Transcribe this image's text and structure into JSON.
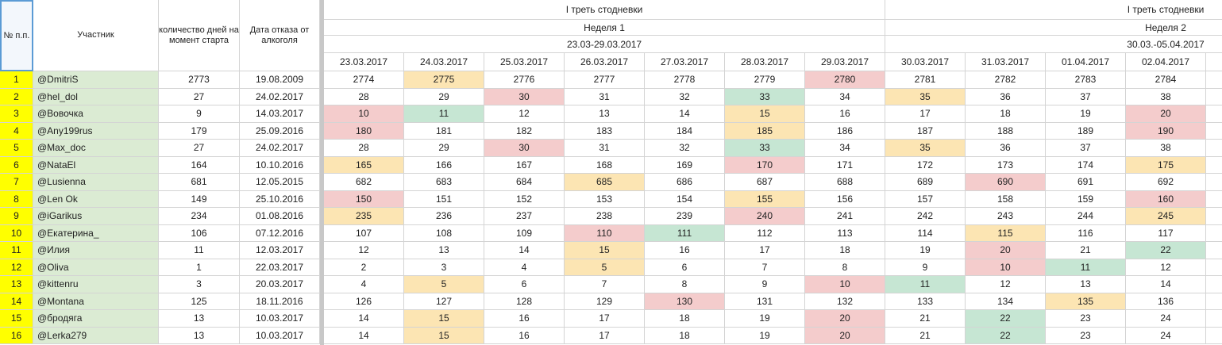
{
  "table": {
    "headers": {
      "num": "№ п.п.",
      "name": "Участник",
      "days": "количество дней на момент старта",
      "quit_date": "Дата отказа от алкоголя"
    },
    "groups": [
      {
        "title": "I треть стодневки",
        "week": "Неделя 1",
        "range": "23.03-29.03.2017"
      },
      {
        "title": "I треть стодневки",
        "week": "Неделя 2",
        "range": "30.03.-05.04.2017"
      }
    ],
    "dates": [
      "23.03.2017",
      "24.03.2017",
      "25.03.2017",
      "26.03.2017",
      "27.03.2017",
      "28.03.2017",
      "29.03.2017",
      "30.03.2017",
      "31.03.2017",
      "01.04.2017",
      "02.04.2017"
    ],
    "rows": [
      {
        "n": 1,
        "name": "@DmitriS",
        "days": 2773,
        "quit_date": "19.08.2009",
        "cells": [
          2774,
          2775,
          2776,
          2777,
          2778,
          2779,
          2780,
          2781,
          2782,
          2783,
          2784
        ],
        "colors": [
          null,
          "#fce5b3",
          null,
          null,
          null,
          null,
          "#f4cccc",
          null,
          null,
          null,
          null
        ]
      },
      {
        "n": 2,
        "name": "@hel_dol",
        "days": 27,
        "quit_date": "24.02.2017",
        "cells": [
          28,
          29,
          30,
          31,
          32,
          33,
          34,
          35,
          36,
          37,
          38
        ],
        "colors": [
          null,
          null,
          "#f4cccc",
          null,
          null,
          "#c6e6d3",
          null,
          "#fce5b3",
          null,
          null,
          null
        ]
      },
      {
        "n": 3,
        "name": "@Вовочка",
        "days": 9,
        "quit_date": "14.03.2017",
        "cells": [
          10,
          11,
          12,
          13,
          14,
          15,
          16,
          17,
          18,
          19,
          20
        ],
        "colors": [
          "#f4cccc",
          "#c6e6d3",
          null,
          null,
          null,
          "#fce5b3",
          null,
          null,
          null,
          null,
          "#f4cccc"
        ]
      },
      {
        "n": 4,
        "name": "@Any199rus",
        "days": 179,
        "quit_date": "25.09.2016",
        "cells": [
          180,
          181,
          182,
          183,
          184,
          185,
          186,
          187,
          188,
          189,
          190
        ],
        "colors": [
          "#f4cccc",
          null,
          null,
          null,
          null,
          "#fce5b3",
          null,
          null,
          null,
          null,
          "#f4cccc"
        ]
      },
      {
        "n": 5,
        "name": "@Max_doc",
        "days": 27,
        "quit_date": "24.02.2017",
        "cells": [
          28,
          29,
          30,
          31,
          32,
          33,
          34,
          35,
          36,
          37,
          38
        ],
        "colors": [
          null,
          null,
          "#f4cccc",
          null,
          null,
          "#c6e6d3",
          null,
          "#fce5b3",
          null,
          null,
          null
        ]
      },
      {
        "n": 6,
        "name": "@NataEl",
        "days": 164,
        "quit_date": "10.10.2016",
        "cells": [
          165,
          166,
          167,
          168,
          169,
          170,
          171,
          172,
          173,
          174,
          175
        ],
        "colors": [
          "#fce5b3",
          null,
          null,
          null,
          null,
          "#f4cccc",
          null,
          null,
          null,
          null,
          "#fce5b3"
        ]
      },
      {
        "n": 7,
        "name": "@Lusienna",
        "days": 681,
        "quit_date": "12.05.2015",
        "cells": [
          682,
          683,
          684,
          685,
          686,
          687,
          688,
          689,
          690,
          691,
          692
        ],
        "colors": [
          null,
          null,
          null,
          "#fce5b3",
          null,
          null,
          null,
          null,
          "#f4cccc",
          null,
          null
        ]
      },
      {
        "n": 8,
        "name": "@Len Ok",
        "days": 149,
        "quit_date": "25.10.2016",
        "cells": [
          150,
          151,
          152,
          153,
          154,
          155,
          156,
          157,
          158,
          159,
          160
        ],
        "colors": [
          "#f4cccc",
          null,
          null,
          null,
          null,
          "#fce5b3",
          null,
          null,
          null,
          null,
          "#f4cccc"
        ]
      },
      {
        "n": 9,
        "name": "@iGarikus",
        "days": 234,
        "quit_date": "01.08.2016",
        "cells": [
          235,
          236,
          237,
          238,
          239,
          240,
          241,
          242,
          243,
          244,
          245
        ],
        "colors": [
          "#fce5b3",
          null,
          null,
          null,
          null,
          "#f4cccc",
          null,
          null,
          null,
          null,
          "#fce5b3"
        ]
      },
      {
        "n": 10,
        "name": "@Екатерина_",
        "days": 106,
        "quit_date": "07.12.2016",
        "cells": [
          107,
          108,
          109,
          110,
          111,
          112,
          113,
          114,
          115,
          116,
          117
        ],
        "colors": [
          null,
          null,
          null,
          "#f4cccc",
          "#c6e6d3",
          null,
          null,
          null,
          "#fce5b3",
          null,
          null
        ]
      },
      {
        "n": 11,
        "name": "@Илия",
        "days": 11,
        "quit_date": "12.03.2017",
        "cells": [
          12,
          13,
          14,
          15,
          16,
          17,
          18,
          19,
          20,
          21,
          22
        ],
        "colors": [
          null,
          null,
          null,
          "#fce5b3",
          null,
          null,
          null,
          null,
          "#f4cccc",
          null,
          "#c6e6d3"
        ]
      },
      {
        "n": 12,
        "name": "@Oliva",
        "days": 1,
        "quit_date": "22.03.2017",
        "cells": [
          2,
          3,
          4,
          5,
          6,
          7,
          8,
          9,
          10,
          11,
          12
        ],
        "colors": [
          null,
          null,
          null,
          "#fce5b3",
          null,
          null,
          null,
          null,
          "#f4cccc",
          "#c6e6d3",
          null
        ]
      },
      {
        "n": 13,
        "name": "@kittenru",
        "days": 3,
        "quit_date": "20.03.2017",
        "cells": [
          4,
          5,
          6,
          7,
          8,
          9,
          10,
          11,
          12,
          13,
          14
        ],
        "colors": [
          null,
          "#fce5b3",
          null,
          null,
          null,
          null,
          "#f4cccc",
          "#c6e6d3",
          null,
          null,
          null
        ]
      },
      {
        "n": 14,
        "name": "@Montana",
        "days": 125,
        "quit_date": "18.11.2016",
        "cells": [
          126,
          127,
          128,
          129,
          130,
          131,
          132,
          133,
          134,
          135,
          136
        ],
        "colors": [
          null,
          null,
          null,
          null,
          "#f4cccc",
          null,
          null,
          null,
          null,
          "#fce5b3",
          null
        ]
      },
      {
        "n": 15,
        "name": "@бродяга",
        "days": 13,
        "quit_date": "10.03.2017",
        "cells": [
          14,
          15,
          16,
          17,
          18,
          19,
          20,
          21,
          22,
          23,
          24
        ],
        "colors": [
          null,
          "#fce5b3",
          null,
          null,
          null,
          null,
          "#f4cccc",
          null,
          "#c6e6d3",
          null,
          null
        ]
      },
      {
        "n": 16,
        "name": "@Lerka279",
        "days": 13,
        "quit_date": "10.03.2017",
        "cells": [
          14,
          15,
          16,
          17,
          18,
          19,
          20,
          21,
          22,
          23,
          24
        ],
        "colors": [
          null,
          "#fce5b3",
          null,
          null,
          null,
          null,
          "#f4cccc",
          null,
          "#c6e6d3",
          null,
          null
        ]
      }
    ]
  }
}
